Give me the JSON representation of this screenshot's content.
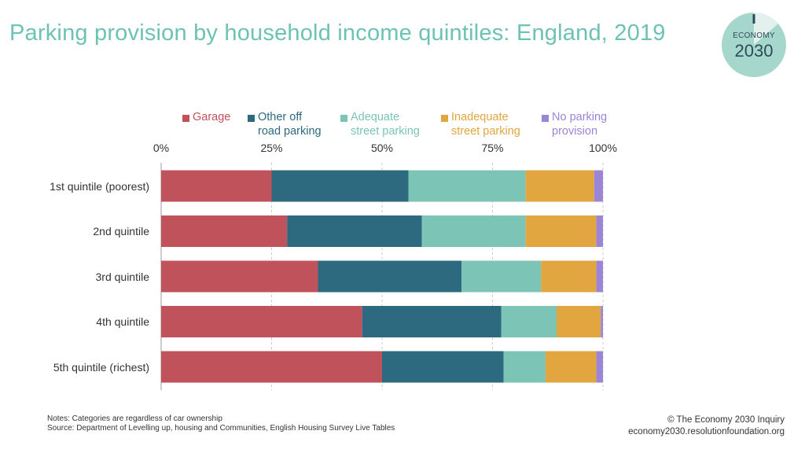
{
  "title": "Parking provision by household income quintiles: England, 2019",
  "logo": {
    "label": "ECONOMY",
    "year": "2030"
  },
  "notes": {
    "line1": "Notes: Categories are regardless of car ownership",
    "line2": "Source: Department of Levelling up, housing and Communities, English Housing Survey Live Tables"
  },
  "credits": {
    "line1": "© The Economy 2030 Inquiry",
    "line2": "economy2030.resolutionfoundation.org"
  },
  "chart_data": {
    "type": "bar",
    "orientation": "horizontal",
    "stacked": true,
    "xlim": [
      0,
      100
    ],
    "xticks": [
      "0%",
      "25%",
      "50%",
      "75%",
      "100%"
    ],
    "categories": [
      "1st quintile (poorest)",
      "2nd quintile",
      "3rd quintile",
      "4th quintile",
      "5th quintile (richest)"
    ],
    "series": [
      {
        "name": "Garage",
        "color": "#c0525b",
        "values": [
          25,
          28.5,
          35.5,
          45.5,
          50
        ]
      },
      {
        "name": "Other off\nroad parking",
        "color": "#2d6a80",
        "values": [
          31,
          30.5,
          32.5,
          31.5,
          27.5
        ]
      },
      {
        "name": "Adequate\nstreet parking",
        "color": "#7cc4b5",
        "values": [
          26.5,
          23.5,
          18,
          12.5,
          9.5
        ]
      },
      {
        "name": "Inadequate\nstreet parking",
        "color": "#e1a640",
        "values": [
          15.5,
          16,
          12.5,
          10,
          11.5
        ]
      },
      {
        "name": "No parking\nprovision",
        "color": "#9a85d6",
        "values": [
          2,
          1.5,
          1.5,
          0.5,
          1.5
        ]
      }
    ],
    "legend_position": "top",
    "grid": "vertical-dashed"
  }
}
